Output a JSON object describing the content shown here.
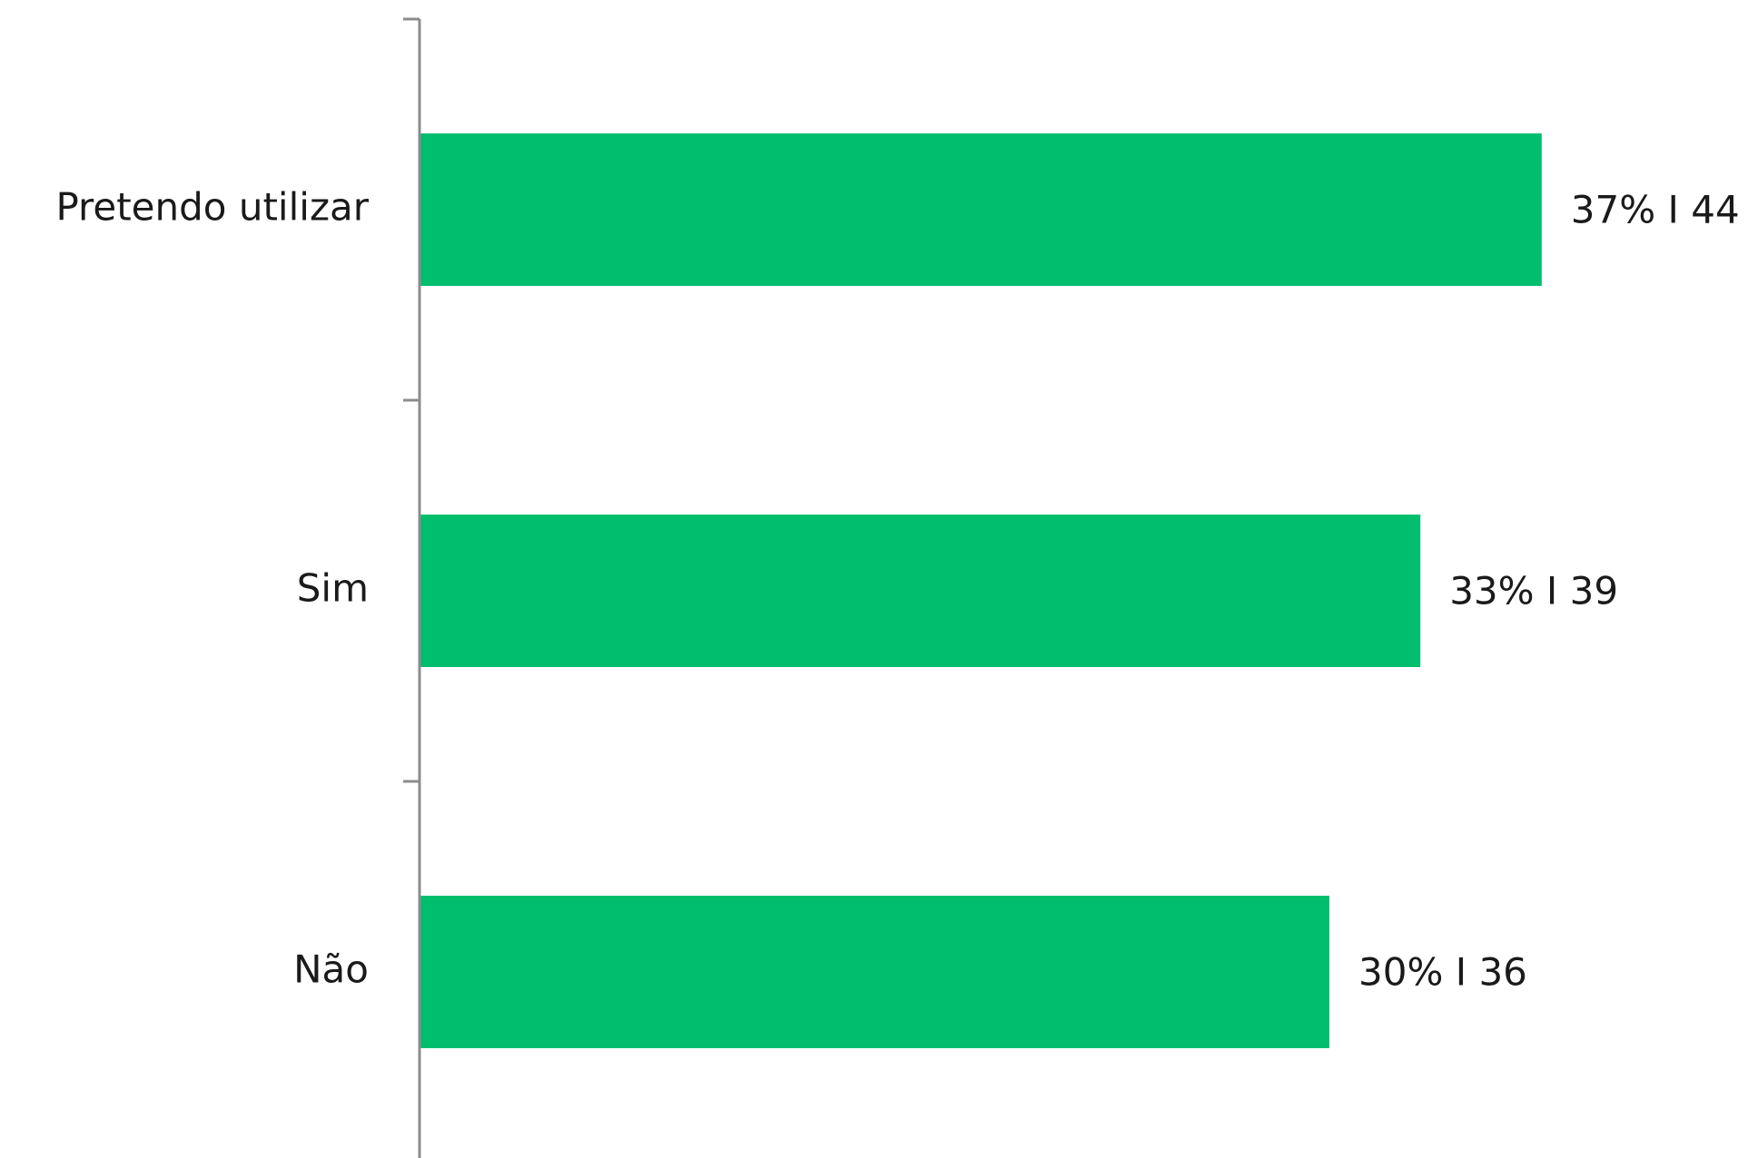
{
  "chart_data": {
    "type": "barh",
    "categories": [
      "Pretendo utilizar",
      "Sim",
      "Não"
    ],
    "values": [
      37,
      33,
      30
    ],
    "value_labels": [
      "37% I 44",
      "33% I 39",
      "30% I 36"
    ],
    "color": "#00be6e",
    "xlim": [
      0,
      40
    ]
  }
}
